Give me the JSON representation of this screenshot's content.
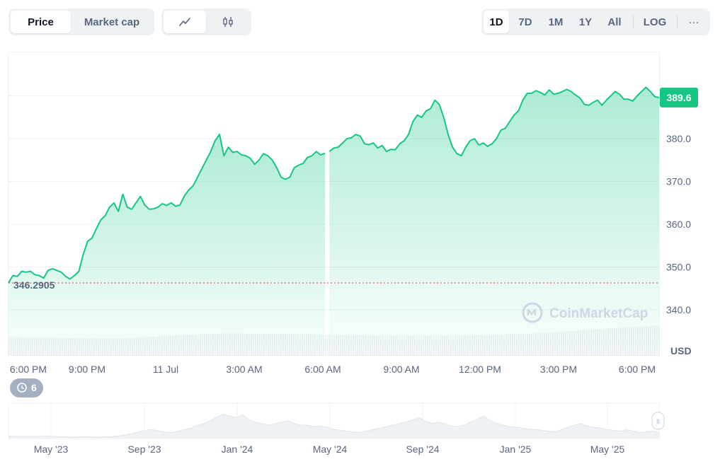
{
  "toolbar": {
    "price_tab": "Price",
    "market_cap_tab": "Market cap",
    "line_chart_icon": "line-chart-icon",
    "candlestick_icon": "candlestick-icon",
    "ranges": [
      "1D",
      "7D",
      "1M",
      "1Y",
      "All"
    ],
    "active_range": "1D",
    "log_label": "LOG",
    "more_label": "···"
  },
  "chart_data": {
    "type": "area",
    "title": "",
    "currency_label": "USD",
    "current_price": "389.6",
    "reference_price": "346.2905",
    "ylim": [
      338,
      394
    ],
    "y_ticks": [
      "340.0",
      "350.0",
      "360.0",
      "370.0",
      "380.0"
    ],
    "x_tick_labels": [
      "6:00 PM",
      "9:00 PM",
      "11 Jul",
      "3:00 AM",
      "6:00 AM",
      "9:00 AM",
      "12:00 PM",
      "3:00 PM",
      "6:00 PM"
    ],
    "watermark": "CoinMarketCap",
    "colors": {
      "line": "#16c784",
      "reference": "#ea3943",
      "current_badge": "#16c784"
    },
    "series": [
      {
        "x": [
          0,
          4,
          8,
          12,
          16,
          20,
          24,
          28,
          32,
          36,
          40,
          44,
          48,
          52,
          56,
          60,
          64,
          68,
          72,
          76,
          80,
          84,
          88,
          92,
          96,
          100,
          104,
          108,
          112,
          116,
          120,
          124,
          128,
          132,
          136,
          140,
          144,
          148,
          152,
          156,
          160,
          164,
          168,
          172,
          176,
          180,
          184,
          188,
          192,
          196,
          200,
          204,
          208,
          212,
          216,
          220,
          224,
          228,
          232,
          236,
          240,
          244,
          248,
          252,
          256,
          260,
          264,
          268,
          272,
          276,
          280,
          284,
          288
        ],
        "values": [
          346.3,
          348,
          347.8,
          349,
          348.8,
          349,
          348.2,
          348,
          347.4,
          349.2,
          349.6,
          349.2,
          348.8,
          347.8,
          347.2,
          348,
          349,
          353,
          356,
          356.8,
          359,
          361,
          362,
          364,
          365,
          363,
          367,
          364,
          363.5,
          365,
          366.5,
          364.5,
          363.5,
          363.6,
          364,
          364.8,
          364.4,
          365,
          364.2,
          364.5,
          366.6,
          368,
          369,
          371,
          373,
          375,
          377,
          379.5,
          381,
          376,
          378,
          376.8,
          377,
          376.2,
          376,
          375.4,
          374,
          375,
          376.5,
          376,
          375,
          373.2,
          371,
          370.5,
          371,
          373.2,
          373.8,
          374.2,
          375.6,
          376,
          377,
          376.2,
          376.6
        ]
      },
      {
        "x": [
          292,
          296,
          300,
          304,
          308,
          312,
          316,
          320,
          324,
          328,
          332,
          336,
          340,
          344,
          348,
          352,
          356,
          360,
          364,
          368,
          372,
          376,
          380,
          384,
          388,
          392,
          396,
          400,
          404,
          408,
          412,
          416,
          420,
          424,
          428,
          432,
          436,
          440,
          444,
          448,
          452,
          456,
          460,
          464,
          468,
          472,
          476,
          480,
          484,
          488,
          492,
          496,
          500,
          504,
          508,
          512,
          516,
          520,
          524,
          528,
          532,
          536,
          540,
          544,
          548,
          552,
          556,
          560,
          564,
          568,
          572,
          576,
          580,
          584,
          588,
          592
        ],
        "values": [
          377,
          377.8,
          378,
          379,
          380,
          380.2,
          381,
          380.6,
          378.8,
          378.6,
          379,
          377.8,
          378.4,
          377,
          377.5,
          377.4,
          378.8,
          379.5,
          381,
          384,
          385.5,
          385,
          386.5,
          387,
          389,
          388,
          385,
          381,
          378,
          376.5,
          376,
          378,
          379.5,
          380,
          378.5,
          379,
          378.2,
          378.8,
          380,
          382,
          382.4,
          384,
          385.5,
          386.5,
          389,
          390.6,
          390.6,
          391.2,
          390.8,
          390.2,
          391.4,
          390.4,
          390.6,
          391,
          391.5,
          391,
          390.2,
          389.5,
          388,
          387.8,
          388.5,
          389,
          387.8,
          389,
          390,
          391,
          390.4,
          389.2,
          389.2,
          388.8,
          390,
          391,
          392,
          391,
          389.8,
          389.6
        ]
      }
    ],
    "volume": {
      "x": [
        0,
        50,
        100,
        150,
        200,
        250,
        300,
        350,
        400,
        450,
        500,
        550,
        600
      ],
      "values": [
        0.55,
        0.52,
        0.5,
        0.6,
        0.66,
        0.65,
        0.62,
        0.6,
        0.6,
        0.62,
        0.68,
        0.8,
        0.9
      ]
    },
    "overview": {
      "x_tick_labels": [
        "May '23",
        "Sep '23",
        "Jan '24",
        "May '24",
        "Sep '24",
        "Jan '25",
        "May '25"
      ],
      "events_count": "6",
      "handle_label": "II",
      "x": [
        0,
        3,
        6,
        8,
        10,
        12,
        14,
        16,
        17,
        18,
        19,
        20,
        21,
        22,
        23,
        24,
        25,
        26,
        27,
        28,
        29,
        30,
        31,
        32,
        33,
        34,
        35,
        36,
        37,
        38,
        39,
        40,
        41,
        42,
        43,
        44,
        45,
        46,
        47,
        48,
        49,
        50,
        51,
        52,
        53,
        54,
        55,
        56,
        57,
        58,
        59,
        60,
        61,
        62,
        63,
        64,
        65,
        66,
        67,
        68,
        69,
        70,
        71,
        72,
        73,
        74,
        75,
        76,
        77,
        78,
        79,
        80,
        81,
        82,
        83,
        84,
        85,
        86,
        87,
        88,
        89,
        90,
        91,
        92,
        93,
        94,
        95,
        96,
        97,
        98,
        99,
        100
      ],
      "values": [
        0.08,
        0.07,
        0.08,
        0.06,
        0.05,
        0.06,
        0.05,
        0.07,
        0.09,
        0.12,
        0.17,
        0.22,
        0.28,
        0.3,
        0.26,
        0.22,
        0.2,
        0.24,
        0.3,
        0.35,
        0.45,
        0.5,
        0.6,
        0.72,
        0.82,
        0.75,
        0.7,
        0.8,
        0.62,
        0.55,
        0.5,
        0.45,
        0.5,
        0.55,
        0.6,
        0.5,
        0.45,
        0.45,
        0.4,
        0.42,
        0.38,
        0.3,
        0.28,
        0.25,
        0.22,
        0.2,
        0.25,
        0.3,
        0.35,
        0.4,
        0.45,
        0.5,
        0.55,
        0.62,
        0.7,
        0.6,
        0.5,
        0.55,
        0.5,
        0.42,
        0.4,
        0.45,
        0.55,
        0.65,
        0.75,
        0.62,
        0.5,
        0.45,
        0.4,
        0.38,
        0.35,
        0.32,
        0.3,
        0.28,
        0.25,
        0.22,
        0.3,
        0.38,
        0.45,
        0.5,
        0.42,
        0.38,
        0.35,
        0.3,
        0.28,
        0.25,
        0.3,
        0.25,
        0.2,
        0.22,
        0.25,
        0.2
      ]
    }
  }
}
